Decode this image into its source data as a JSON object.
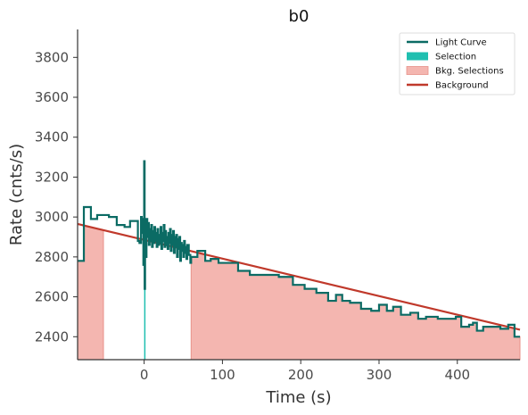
{
  "chart_data": {
    "type": "line",
    "title": "b0",
    "xlabel": "Time (s)",
    "ylabel": "Rate (cnts/s)",
    "xlim": [
      -85,
      480
    ],
    "ylim": [
      2285,
      3940
    ],
    "xticks": [
      0,
      100,
      200,
      300,
      400
    ],
    "yticks": [
      2400,
      2600,
      2800,
      3000,
      3200,
      3400,
      3600,
      3800
    ],
    "grid": false,
    "legend_position": "top-right",
    "legend": [
      {
        "label": "Light Curve",
        "kind": "line",
        "color": "#0b6b64"
      },
      {
        "label": "Selection",
        "kind": "patch",
        "color": "#1fbfb0"
      },
      {
        "label": "Bkg. Selections",
        "kind": "patch",
        "color": "#f4b6b0"
      },
      {
        "label": "Background",
        "kind": "line",
        "color": "#c0392b"
      }
    ],
    "colors": {
      "light_curve": "#0b6b64",
      "selection": "#1fbfb0",
      "bkg_fill": "#f4b6b0",
      "bkg_edge": "#e8928a",
      "background": "#c0392b"
    },
    "series": [
      {
        "name": "Light Curve",
        "kind": "step",
        "points": [
          [
            -85,
            2780
          ],
          [
            -77,
            3050
          ],
          [
            -68,
            2990
          ],
          [
            -60,
            3010
          ],
          [
            -45,
            3000
          ],
          [
            -35,
            2960
          ],
          [
            -25,
            2950
          ],
          [
            -18,
            2980
          ],
          [
            -8,
            2970
          ],
          [
            -8,
            2880
          ],
          [
            -6,
            2870
          ],
          [
            -4,
            3000
          ],
          [
            -3,
            2920
          ],
          [
            -2,
            2990
          ],
          [
            -1,
            2760
          ],
          [
            0,
            3280
          ],
          [
            0.6,
            2640
          ],
          [
            1.2,
            2950
          ],
          [
            2,
            2800
          ],
          [
            3,
            2990
          ],
          [
            4,
            2900
          ],
          [
            5,
            2970
          ],
          [
            6,
            2860
          ],
          [
            7,
            2940
          ],
          [
            8,
            2880
          ],
          [
            9,
            2960
          ],
          [
            10,
            2850
          ],
          [
            11,
            2930
          ],
          [
            12,
            2870
          ],
          [
            13,
            2950
          ],
          [
            14,
            2880
          ],
          [
            15,
            2920
          ],
          [
            16,
            2850
          ],
          [
            17,
            2940
          ],
          [
            18,
            2860
          ],
          [
            19,
            2910
          ],
          [
            20,
            2870
          ],
          [
            21,
            2950
          ],
          [
            22,
            2840
          ],
          [
            23,
            2920
          ],
          [
            24,
            2880
          ],
          [
            25,
            2960
          ],
          [
            26,
            2850
          ],
          [
            27,
            2930
          ],
          [
            28,
            2860
          ],
          [
            29,
            2900
          ],
          [
            30,
            2840
          ],
          [
            31,
            2920
          ],
          [
            32,
            2870
          ],
          [
            33,
            2940
          ],
          [
            34,
            2830
          ],
          [
            35,
            2910
          ],
          [
            36,
            2860
          ],
          [
            37,
            2930
          ],
          [
            38,
            2820
          ],
          [
            39,
            2900
          ],
          [
            40,
            2850
          ],
          [
            41,
            2910
          ],
          [
            42,
            2800
          ],
          [
            43,
            2890
          ],
          [
            44,
            2840
          ],
          [
            45,
            2900
          ],
          [
            46,
            2780
          ],
          [
            47,
            2870
          ],
          [
            48,
            2830
          ],
          [
            49,
            2860
          ],
          [
            50,
            2800
          ],
          [
            51,
            2880
          ],
          [
            52,
            2820
          ],
          [
            53,
            2850
          ],
          [
            54,
            2790
          ],
          [
            55,
            2860
          ],
          [
            57,
            2810
          ],
          [
            59,
            2770
          ],
          [
            60,
            2800
          ],
          [
            68,
            2830
          ],
          [
            78,
            2780
          ],
          [
            85,
            2790
          ],
          [
            95,
            2770
          ],
          [
            108,
            2770
          ],
          [
            120,
            2730
          ],
          [
            135,
            2710
          ],
          [
            148,
            2710
          ],
          [
            163,
            2710
          ],
          [
            172,
            2700
          ],
          [
            190,
            2660
          ],
          [
            205,
            2640
          ],
          [
            220,
            2620
          ],
          [
            235,
            2580
          ],
          [
            245,
            2610
          ],
          [
            253,
            2580
          ],
          [
            263,
            2570
          ],
          [
            277,
            2540
          ],
          [
            290,
            2530
          ],
          [
            300,
            2560
          ],
          [
            310,
            2530
          ],
          [
            318,
            2550
          ],
          [
            328,
            2510
          ],
          [
            340,
            2520
          ],
          [
            350,
            2490
          ],
          [
            360,
            2500
          ],
          [
            375,
            2490
          ],
          [
            388,
            2490
          ],
          [
            398,
            2500
          ],
          [
            405,
            2450
          ],
          [
            415,
            2460
          ],
          [
            420,
            2470
          ],
          [
            425,
            2430
          ],
          [
            433,
            2450
          ],
          [
            443,
            2450
          ],
          [
            455,
            2440
          ],
          [
            465,
            2460
          ],
          [
            473,
            2400
          ],
          [
            480,
            2400
          ]
        ]
      },
      {
        "name": "Background",
        "kind": "line",
        "x": [
          -85,
          480
        ],
        "y": [
          2965,
          2435
        ]
      }
    ],
    "selection": [
      0,
      1
    ],
    "bkg_selections": [
      [
        -85,
        -52
      ],
      [
        60,
        480
      ]
    ]
  }
}
